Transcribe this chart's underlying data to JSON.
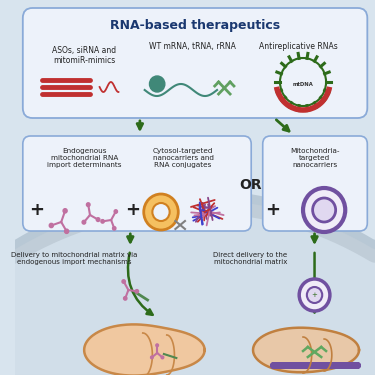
{
  "bg_color": "#d8e4ee",
  "top_box_fc": "#edf2fa",
  "top_box_ec": "#8aaad8",
  "mid_box_fc": "#edf2fa",
  "mid_box_ec": "#8aaad8",
  "right_box_fc": "#edf2fa",
  "right_box_ec": "#8aaad8",
  "title": "RNA-based therapeutics",
  "title_color": "#1a3870",
  "arrow_color": "#2d6b1a",
  "text_color": "#222222",
  "label1": "ASOs, siRNA and\nmitomiR-mimics",
  "label2": "WT mRNA, tRNA, rRNA",
  "label3": "Antireplicative RNAs",
  "mid_label1": "Endogenous\nmitochondrial RNA\nimport determinants",
  "mid_label2": "Cytosol-targeted\nnanocarriers and\nRNA conjugates",
  "right_label": "Mitochondria-\ntargeted\nnanocarriers",
  "or_text": "OR",
  "bot_left": "Delivery to mitochondrial matrix via\nendogenous import mechanisms",
  "bot_right": "Direct delivery to the\nmitochondrial matrix",
  "pink": "#c070a0",
  "purple": "#7050a0",
  "dark_green": "#2d6b1a",
  "red": "#c03030",
  "orange": "#d08020",
  "teal": "#408878",
  "mito_fill_left": "#f0c8a0",
  "mito_edge_left": "#c88848",
  "mito_fill_right": "#e8c8a8",
  "mito_edge_right": "#c08040",
  "membrane_color": "#b8cad8",
  "cell_fill": "#cfdce8"
}
